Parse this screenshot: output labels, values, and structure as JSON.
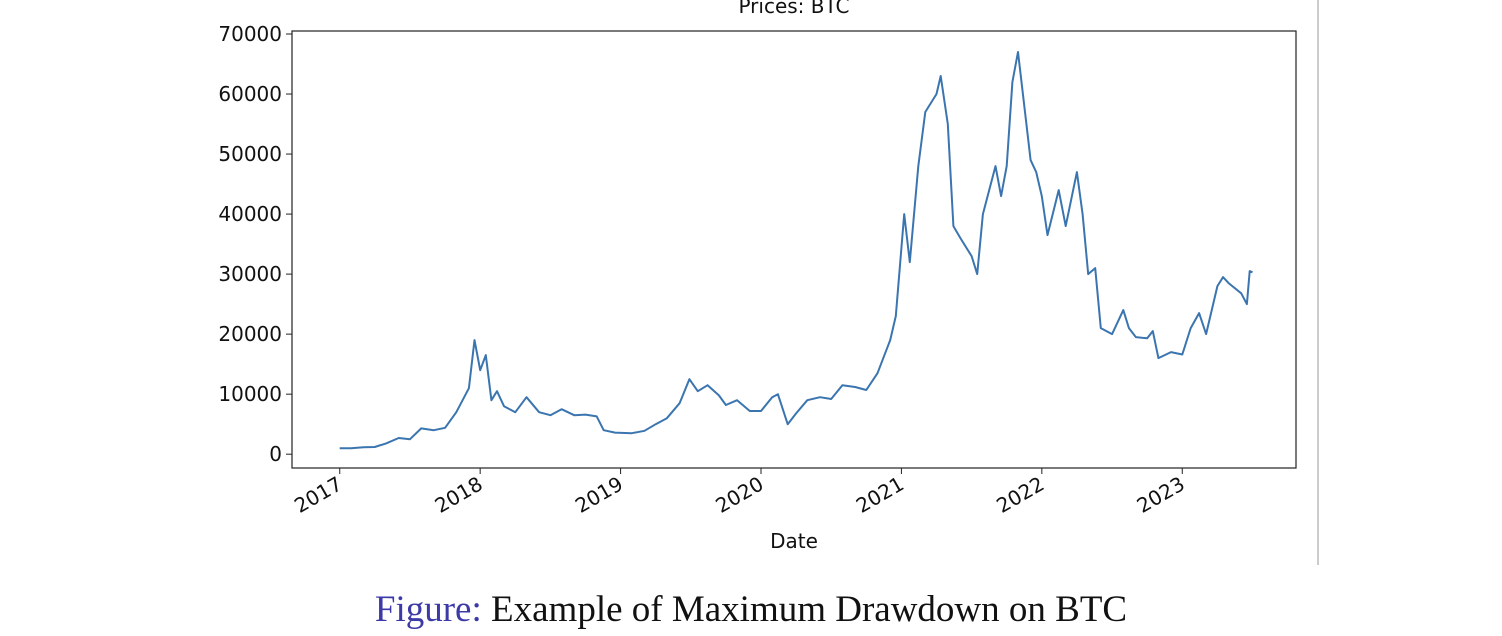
{
  "chart_data": {
    "type": "line",
    "title": "Prices: BTC",
    "xlabel": "Date",
    "x": [
      2017.0,
      2017.08,
      2017.17,
      2017.25,
      2017.33,
      2017.42,
      2017.5,
      2017.58,
      2017.67,
      2017.75,
      2017.83,
      2017.92,
      2017.96,
      2018.0,
      2018.04,
      2018.08,
      2018.12,
      2018.17,
      2018.25,
      2018.33,
      2018.42,
      2018.5,
      2018.58,
      2018.67,
      2018.75,
      2018.83,
      2018.88,
      2018.96,
      2019.08,
      2019.17,
      2019.25,
      2019.33,
      2019.42,
      2019.49,
      2019.55,
      2019.62,
      2019.7,
      2019.75,
      2019.83,
      2019.92,
      2020.0,
      2020.08,
      2020.12,
      2020.19,
      2020.25,
      2020.33,
      2020.42,
      2020.5,
      2020.58,
      2020.67,
      2020.75,
      2020.83,
      2020.92,
      2020.96,
      2021.02,
      2021.06,
      2021.12,
      2021.17,
      2021.25,
      2021.28,
      2021.33,
      2021.37,
      2021.42,
      2021.5,
      2021.54,
      2021.58,
      2021.67,
      2021.71,
      2021.75,
      2021.79,
      2021.83,
      2021.88,
      2021.92,
      2021.96,
      2022.0,
      2022.04,
      2022.12,
      2022.17,
      2022.25,
      2022.29,
      2022.33,
      2022.38,
      2022.42,
      2022.5,
      2022.58,
      2022.62,
      2022.67,
      2022.75,
      2022.79,
      2022.83,
      2022.92,
      2023.0,
      2023.06,
      2023.12,
      2023.17,
      2023.25,
      2023.29,
      2023.33,
      2023.42,
      2023.46,
      2023.48,
      2023.5
    ],
    "series": [
      {
        "name": "BTC",
        "color": "#3b75af",
        "values": [
          1000,
          1000,
          1150,
          1200,
          1800,
          2700,
          2500,
          4300,
          4000,
          4400,
          7000,
          11000,
          19000,
          14000,
          16500,
          9000,
          10500,
          8000,
          7000,
          9500,
          7000,
          6500,
          7500,
          6500,
          6600,
          6300,
          4000,
          3600,
          3500,
          3900,
          5000,
          6000,
          8500,
          12500,
          10500,
          11500,
          9800,
          8200,
          9000,
          7200,
          7200,
          9500,
          10000,
          5000,
          6800,
          9000,
          9500,
          9200,
          11500,
          11200,
          10700,
          13500,
          19000,
          23000,
          40000,
          32000,
          48000,
          57000,
          60000,
          63000,
          55000,
          38000,
          36000,
          33000,
          30000,
          40000,
          48000,
          43000,
          48000,
          62000,
          67000,
          57000,
          49000,
          47000,
          43000,
          36500,
          44000,
          38000,
          47000,
          40000,
          30000,
          31000,
          21000,
          20000,
          24000,
          21000,
          19500,
          19300,
          20500,
          16000,
          17000,
          16600,
          21000,
          23500,
          20000,
          28000,
          29500,
          28500,
          26800,
          25000,
          30500,
          30300
        ]
      }
    ],
    "xlim": [
      2016.66,
      2023.81
    ],
    "xticks": [
      2017,
      2018,
      2019,
      2020,
      2021,
      2022,
      2023
    ],
    "ylim": [
      -2300,
      70500
    ],
    "yticks": [
      0,
      10000,
      20000,
      30000,
      40000,
      50000,
      60000,
      70000
    ],
    "grid": false
  },
  "caption": {
    "label": "Figure:",
    "text": "Example of Maximum Drawdown on BTC"
  }
}
